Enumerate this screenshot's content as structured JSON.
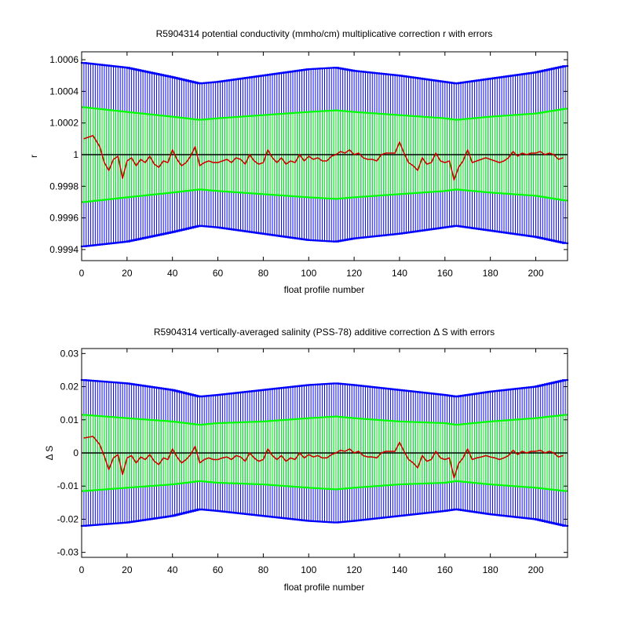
{
  "colors": {
    "outer_error": "#0000ff",
    "inner_error": "#00ff00",
    "series": "#cc0000",
    "zero_line": "#000000"
  },
  "chart_data": [
    {
      "type": "line",
      "title": "R5904314 potential conductivity (mmho/cm) multiplicative correction r with errors",
      "xlabel": "float profile number",
      "ylabel": "r",
      "xlim": [
        0,
        214
      ],
      "ylim": [
        0.99933,
        1.00065
      ],
      "xticks": [
        0,
        20,
        40,
        60,
        80,
        100,
        120,
        140,
        160,
        180,
        200
      ],
      "yticks": [
        0.9994,
        0.9996,
        0.9998,
        1,
        1.0002,
        1.0004,
        1.0006
      ],
      "ytick_labels": [
        "0.9994",
        "0.9996",
        "0.9998",
        "1",
        "1.0002",
        "1.0004",
        "1.0006"
      ],
      "reference_line": 1,
      "grid": false,
      "x": [
        1,
        5,
        8,
        10,
        12,
        14,
        16,
        18,
        20,
        22,
        24,
        26,
        28,
        30,
        32,
        34,
        36,
        38,
        40,
        42,
        44,
        46,
        48,
        50,
        52,
        54,
        56,
        58,
        60,
        62,
        64,
        66,
        68,
        70,
        72,
        74,
        76,
        78,
        80,
        82,
        84,
        86,
        88,
        90,
        92,
        94,
        96,
        98,
        100,
        102,
        104,
        106,
        108,
        110,
        112,
        114,
        116,
        118,
        120,
        122,
        124,
        126,
        128,
        130,
        132,
        134,
        136,
        138,
        140,
        142,
        144,
        146,
        148,
        150,
        152,
        154,
        156,
        158,
        160,
        162,
        164,
        166,
        168,
        170,
        172,
        174,
        176,
        178,
        180,
        182,
        184,
        186,
        188,
        190,
        192,
        194,
        196,
        198,
        200,
        202,
        204,
        206,
        208,
        210,
        212
      ],
      "values": [
        1.0001,
        1.00012,
        1.00005,
        0.99995,
        0.9999,
        0.99997,
        0.99999,
        0.99985,
        0.99996,
        0.99998,
        0.99993,
        0.99997,
        0.99995,
        0.99999,
        0.99994,
        0.99992,
        0.99996,
        0.99995,
        1.00003,
        0.99997,
        0.99993,
        0.99995,
        0.99999,
        1.00005,
        0.99993,
        0.99995,
        0.99996,
        0.99995,
        0.99995,
        0.99996,
        0.99997,
        0.99995,
        0.99998,
        0.99997,
        0.99994,
        1.0,
        0.99996,
        0.99994,
        0.99995,
        1.00003,
        0.99998,
        0.99995,
        0.99998,
        0.99994,
        0.99996,
        0.99995,
        1.0,
        0.99996,
        0.99999,
        0.99997,
        0.99998,
        0.99996,
        0.99996,
        0.99999,
        1.0,
        1.00002,
        1.00001,
        1.00003,
        1.0,
        1.00001,
        0.99998,
        0.99997,
        0.99997,
        0.99996,
        1.0,
        1.00001,
        1.00001,
        1.00001,
        1.00008,
        1.00001,
        0.99995,
        0.99993,
        0.9999,
        0.99998,
        0.99994,
        0.99995,
        1.00001,
        0.99996,
        0.99995,
        0.99996,
        0.99984,
        0.99992,
        0.99996,
        1.00003,
        0.99995,
        0.99996,
        0.99997,
        0.99998,
        0.99997,
        0.99996,
        0.99995,
        0.99996,
        0.99998,
        1.00002,
        0.99999,
        1.00001,
        1.0,
        1.00001,
        1.00001,
        1.00002,
        1.0,
        1.00001,
        1.0,
        0.99997,
        0.99998
      ],
      "error_bars": {
        "x": [
          1,
          20,
          40,
          52,
          60,
          80,
          100,
          112,
          120,
          140,
          160,
          165,
          180,
          200,
          213
        ],
        "outer": [
          0.00058,
          0.00055,
          0.00049,
          0.00045,
          0.00046,
          0.0005,
          0.00054,
          0.00055,
          0.00053,
          0.0005,
          0.00046,
          0.00045,
          0.00048,
          0.00052,
          0.00056
        ],
        "inner": [
          0.0003,
          0.00027,
          0.00024,
          0.00022,
          0.00023,
          0.00025,
          0.00027,
          0.00028,
          0.00027,
          0.00025,
          0.00023,
          0.00022,
          0.00024,
          0.00026,
          0.00029
        ]
      }
    },
    {
      "type": "line",
      "title": "R5904314 vertically-averaged salinity (PSS-78) additive correction Δ S with errors",
      "xlabel": "float profile number",
      "ylabel": "Δ S",
      "xlim": [
        0,
        214
      ],
      "ylim": [
        -0.0315,
        0.0315
      ],
      "xticks": [
        0,
        20,
        40,
        60,
        80,
        100,
        120,
        140,
        160,
        180,
        200
      ],
      "yticks": [
        -0.03,
        -0.02,
        -0.01,
        0,
        0.01,
        0.02,
        0.03
      ],
      "ytick_labels": [
        "-0.03",
        "-0.02",
        "-0.01",
        "0",
        "0.01",
        "0.02",
        "0.03"
      ],
      "reference_line": 0,
      "grid": false,
      "x": [
        1,
        5,
        8,
        10,
        12,
        14,
        16,
        18,
        20,
        22,
        24,
        26,
        28,
        30,
        32,
        34,
        36,
        38,
        40,
        42,
        44,
        46,
        48,
        50,
        52,
        54,
        56,
        58,
        60,
        62,
        64,
        66,
        68,
        70,
        72,
        74,
        76,
        78,
        80,
        82,
        84,
        86,
        88,
        90,
        92,
        94,
        96,
        98,
        100,
        102,
        104,
        106,
        108,
        110,
        112,
        114,
        116,
        118,
        120,
        122,
        124,
        126,
        128,
        130,
        132,
        134,
        136,
        138,
        140,
        142,
        144,
        146,
        148,
        150,
        152,
        154,
        156,
        158,
        160,
        162,
        164,
        166,
        168,
        170,
        172,
        174,
        176,
        178,
        180,
        182,
        184,
        186,
        188,
        190,
        192,
        194,
        196,
        198,
        200,
        202,
        204,
        206,
        208,
        210,
        212
      ],
      "values": [
        0.0045,
        0.005,
        0.0025,
        -0.001,
        -0.005,
        -0.0015,
        -0.0005,
        -0.0065,
        -0.0015,
        -0.0008,
        -0.003,
        -0.0012,
        -0.002,
        -0.0005,
        -0.0025,
        -0.0035,
        -0.0015,
        -0.002,
        0.0012,
        -0.0012,
        -0.003,
        -0.002,
        -0.0005,
        0.002,
        -0.003,
        -0.002,
        -0.0015,
        -0.002,
        -0.002,
        -0.0015,
        -0.0012,
        -0.002,
        -0.0008,
        -0.0012,
        -0.0025,
        0.0,
        -0.0015,
        -0.0025,
        -0.002,
        0.0012,
        -0.0008,
        -0.002,
        -0.0008,
        -0.0025,
        -0.0015,
        -0.002,
        0.0,
        -0.0015,
        -0.0005,
        -0.0012,
        -0.0008,
        -0.0015,
        -0.0015,
        -0.0005,
        0.0,
        0.0008,
        0.0005,
        0.0012,
        0.0,
        0.0005,
        -0.0008,
        -0.0012,
        -0.0012,
        -0.0015,
        0.0,
        0.0005,
        0.0005,
        0.0005,
        0.0032,
        0.0005,
        -0.002,
        -0.003,
        -0.0045,
        -0.0008,
        -0.0025,
        -0.002,
        0.0005,
        -0.0015,
        -0.002,
        -0.0015,
        -0.0075,
        -0.0032,
        -0.0015,
        0.0012,
        -0.002,
        -0.0015,
        -0.0012,
        -0.0008,
        -0.0012,
        -0.0015,
        -0.002,
        -0.0015,
        -0.0008,
        0.0008,
        -0.0005,
        0.0005,
        0.0,
        0.0005,
        0.0005,
        0.0008,
        0.0,
        0.0005,
        0.0,
        -0.0012,
        -0.0008
      ],
      "error_bars": {
        "x": [
          1,
          20,
          40,
          52,
          60,
          80,
          100,
          112,
          120,
          140,
          160,
          165,
          180,
          200,
          213
        ],
        "outer": [
          0.022,
          0.021,
          0.019,
          0.017,
          0.0175,
          0.019,
          0.0205,
          0.021,
          0.0205,
          0.019,
          0.0175,
          0.017,
          0.0185,
          0.02,
          0.022
        ],
        "inner": [
          0.0115,
          0.0105,
          0.0095,
          0.0085,
          0.009,
          0.0095,
          0.0105,
          0.011,
          0.0105,
          0.0095,
          0.009,
          0.0085,
          0.0095,
          0.0105,
          0.0115
        ]
      }
    }
  ]
}
